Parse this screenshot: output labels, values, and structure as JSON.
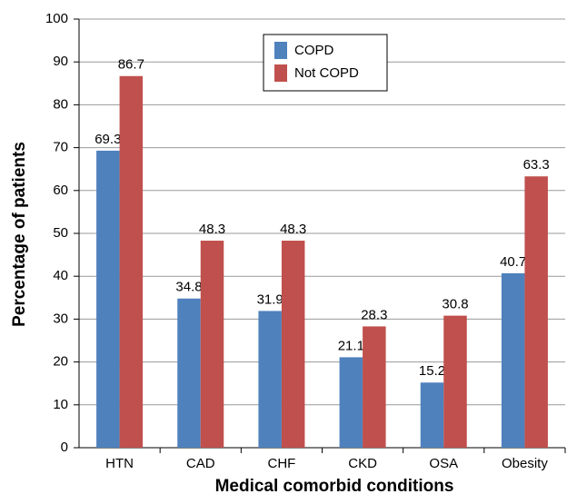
{
  "chart_data": {
    "type": "bar",
    "x_label": "Medical comorbid conditions",
    "y_label": "Percentage of patients",
    "categories": [
      "HTN",
      "CAD",
      "CHF",
      "CKD",
      "OSA",
      "Obesity"
    ],
    "series": [
      {
        "name": "COPD",
        "color": "#4f81bd",
        "values": [
          69.3,
          34.8,
          31.9,
          21.1,
          15.2,
          40.7
        ]
      },
      {
        "name": "Not COPD",
        "color": "#c0504d",
        "values": [
          86.7,
          48.3,
          48.3,
          28.3,
          30.8,
          63.3
        ]
      }
    ],
    "ylim": [
      0,
      100
    ],
    "yticks": [
      0,
      10,
      20,
      30,
      40,
      50,
      60,
      70,
      80,
      90,
      100
    ],
    "grid": true,
    "legend": "top"
  }
}
